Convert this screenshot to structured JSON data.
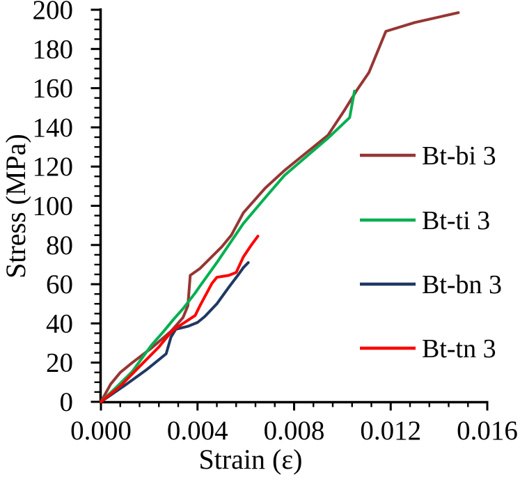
{
  "chart_data": {
    "type": "line",
    "title": "",
    "xlabel": "Strain (ε)",
    "ylabel": "Stress (MPa)",
    "xlim": [
      0,
      0.016
    ],
    "ylim": [
      0,
      200
    ],
    "grid": false,
    "legend_position": "right-inside",
    "x_ticks": [
      0,
      0.004,
      0.008,
      0.012,
      0.016
    ],
    "x_tick_labels": [
      "0.000",
      "0.004",
      "0.008",
      "0.012",
      "0.016"
    ],
    "x_minor_unit": 0.0008,
    "y_ticks": [
      0,
      20,
      40,
      60,
      80,
      100,
      120,
      140,
      160,
      180,
      200
    ],
    "y_tick_labels": [
      "0",
      "20",
      "40",
      "60",
      "80",
      "100",
      "120",
      "140",
      "160",
      "180",
      "200"
    ],
    "y_minor_unit": 5,
    "axis_color": "#000000",
    "series": [
      {
        "name": "Bt-bi 3",
        "color": "#963634",
        "points": [
          [
            0,
            0
          ],
          [
            0.0004,
            9
          ],
          [
            0.0008,
            15
          ],
          [
            0.0013,
            20
          ],
          [
            0.0021,
            27.5
          ],
          [
            0.0029,
            36
          ],
          [
            0.0034,
            43
          ],
          [
            0.0036,
            49
          ],
          [
            0.0037,
            64.5
          ],
          [
            0.0041,
            68
          ],
          [
            0.005,
            79
          ],
          [
            0.0054,
            85
          ],
          [
            0.0059,
            96.5
          ],
          [
            0.0068,
            109
          ],
          [
            0.0076,
            118
          ],
          [
            0.0085,
            127
          ],
          [
            0.0094,
            136
          ],
          [
            0.0101,
            149
          ],
          [
            0.0106,
            159
          ],
          [
            0.0111,
            168
          ],
          [
            0.0118,
            189
          ],
          [
            0.013,
            193.5
          ],
          [
            0.0148,
            198.5
          ]
        ]
      },
      {
        "name": "Bt-ti 3",
        "color": "#00B050",
        "points": [
          [
            0,
            0
          ],
          [
            0.0006,
            7
          ],
          [
            0.0013,
            15.5
          ],
          [
            0.0021,
            29
          ],
          [
            0.0026,
            36
          ],
          [
            0.003,
            42
          ],
          [
            0.0034,
            47.5
          ],
          [
            0.0039,
            55.5
          ],
          [
            0.0041,
            59
          ],
          [
            0.0048,
            71
          ],
          [
            0.0059,
            91
          ],
          [
            0.0069,
            105.5
          ],
          [
            0.0076,
            115.5
          ],
          [
            0.0085,
            125
          ],
          [
            0.0094,
            134.5
          ],
          [
            0.0103,
            145
          ],
          [
            0.0105,
            158.5
          ]
        ]
      },
      {
        "name": "Bt-bn 3",
        "color": "#1F3864",
        "points": [
          [
            0,
            0
          ],
          [
            0.001,
            8.5
          ],
          [
            0.0019,
            16.5
          ],
          [
            0.0023,
            20.5
          ],
          [
            0.0027,
            24.5
          ],
          [
            0.0029,
            33
          ],
          [
            0.0031,
            37
          ],
          [
            0.0036,
            38.5
          ],
          [
            0.004,
            40.5
          ],
          [
            0.0043,
            43.5
          ],
          [
            0.0048,
            50
          ],
          [
            0.0053,
            58.5
          ],
          [
            0.0057,
            65
          ],
          [
            0.0059,
            68.5
          ],
          [
            0.0061,
            71
          ]
        ]
      },
      {
        "name": "Bt-tn 3",
        "color": "#FF0000",
        "points": [
          [
            0,
            0
          ],
          [
            0.0008,
            8
          ],
          [
            0.0016,
            18
          ],
          [
            0.0024,
            28
          ],
          [
            0.0029,
            35.5
          ],
          [
            0.0031,
            37.5
          ],
          [
            0.0039,
            44
          ],
          [
            0.0041,
            49
          ],
          [
            0.0046,
            60.5
          ],
          [
            0.0048,
            63.5
          ],
          [
            0.0053,
            64.5
          ],
          [
            0.0056,
            66
          ],
          [
            0.0059,
            74
          ],
          [
            0.0062,
            79.5
          ],
          [
            0.0065,
            84.5
          ]
        ]
      }
    ]
  }
}
